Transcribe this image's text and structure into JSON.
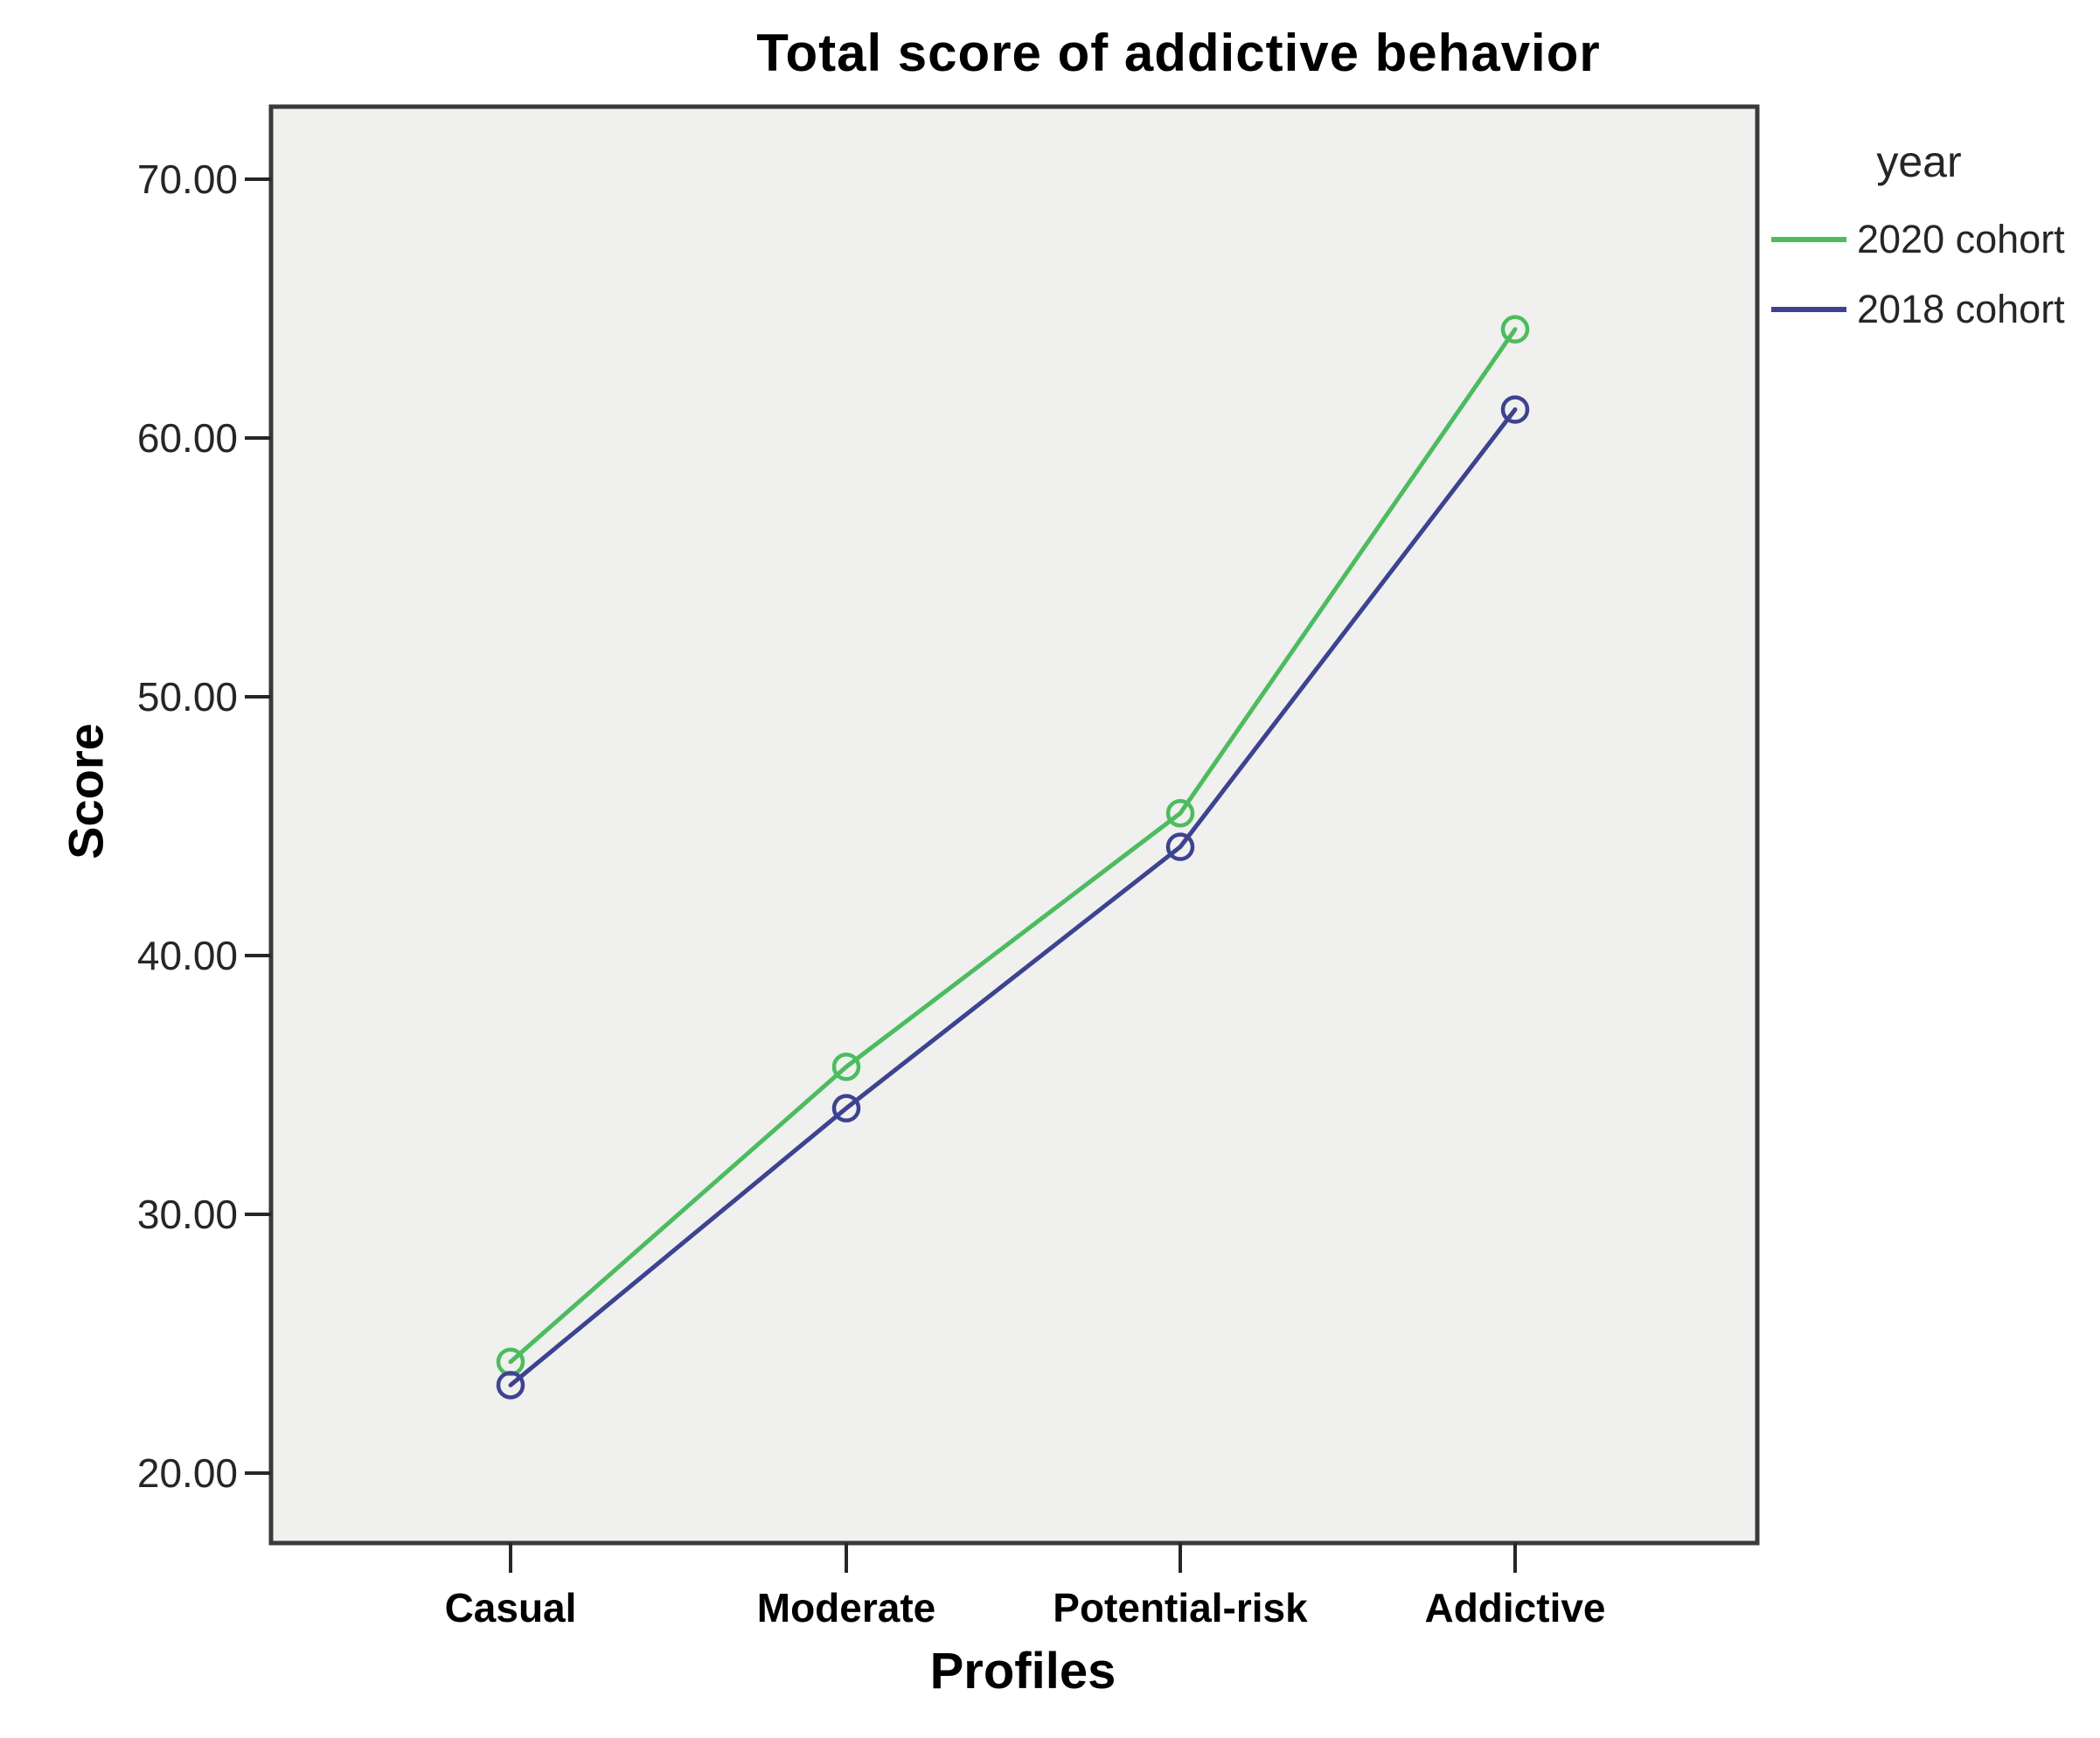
{
  "chart_data": {
    "type": "line",
    "title": "Total score of addictive behavior",
    "xlabel": "Profiles",
    "ylabel": "Score",
    "categories": [
      "Casual",
      "Moderate",
      "Potential-risk",
      "Addictive"
    ],
    "series": [
      {
        "name": "2020 cohort",
        "color": "#4cbc5f",
        "values": [
          24.3,
          35.7,
          45.5,
          64.2
        ]
      },
      {
        "name": "2018 cohort",
        "color": "#3d4291",
        "values": [
          23.4,
          34.1,
          44.2,
          61.1
        ]
      }
    ],
    "legend_title": "year",
    "legend_position": "right",
    "yticks": [
      70,
      60,
      50,
      40,
      30,
      20
    ],
    "ytick_labels": [
      "70.00",
      "60.00",
      "50.00",
      "40.00",
      "30.00",
      "20.00"
    ],
    "ylim": [
      17.3,
      72.9
    ],
    "grid": false,
    "marker": "open-circle",
    "plot_background": "#f0f0ee",
    "frame_color": "#3a3a3a",
    "tick_color": "#262626"
  }
}
